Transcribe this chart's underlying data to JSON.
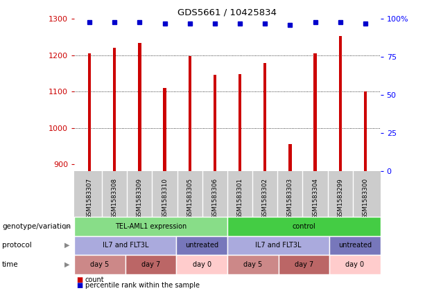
{
  "title": "GDS5661 / 10425834",
  "samples": [
    "GSM1583307",
    "GSM1583308",
    "GSM1583309",
    "GSM1583310",
    "GSM1583305",
    "GSM1583306",
    "GSM1583301",
    "GSM1583302",
    "GSM1583303",
    "GSM1583304",
    "GSM1583299",
    "GSM1583300"
  ],
  "counts": [
    1205,
    1220,
    1235,
    1110,
    1197,
    1147,
    1148,
    1178,
    955,
    1205,
    1253,
    1100
  ],
  "percentiles": [
    98,
    98,
    98,
    97,
    97,
    97,
    97,
    97,
    96,
    98,
    98,
    97
  ],
  "ylim_left": [
    880,
    1300
  ],
  "ylim_right": [
    0,
    100
  ],
  "yticks_left": [
    900,
    1000,
    1100,
    1200,
    1300
  ],
  "yticks_right": [
    0,
    25,
    50,
    75,
    100
  ],
  "ytick_labels_right": [
    "0",
    "25",
    "50",
    "75",
    "100%"
  ],
  "bar_color": "#cc0000",
  "dot_color": "#0000cc",
  "sample_bg_color": "#d0d0d0",
  "genotype_groups": [
    {
      "label": "TEL-AML1 expression",
      "start": 0,
      "end": 6,
      "color": "#88dd88"
    },
    {
      "label": "control",
      "start": 6,
      "end": 12,
      "color": "#44cc44"
    }
  ],
  "protocol_groups": [
    {
      "label": "IL7 and FLT3L",
      "start": 0,
      "end": 4,
      "color": "#aaaadd"
    },
    {
      "label": "untreated",
      "start": 4,
      "end": 6,
      "color": "#7777bb"
    },
    {
      "label": "IL7 and FLT3L",
      "start": 6,
      "end": 10,
      "color": "#aaaadd"
    },
    {
      "label": "untreated",
      "start": 10,
      "end": 12,
      "color": "#7777bb"
    }
  ],
  "time_groups": [
    {
      "label": "day 5",
      "start": 0,
      "end": 2,
      "color": "#cc8888"
    },
    {
      "label": "day 7",
      "start": 2,
      "end": 4,
      "color": "#bb6666"
    },
    {
      "label": "day 0",
      "start": 4,
      "end": 6,
      "color": "#ffcccc"
    },
    {
      "label": "day 5",
      "start": 6,
      "end": 8,
      "color": "#cc8888"
    },
    {
      "label": "day 7",
      "start": 8,
      "end": 10,
      "color": "#bb6666"
    },
    {
      "label": "day 0",
      "start": 10,
      "end": 12,
      "color": "#ffcccc"
    }
  ],
  "row_labels": [
    "genotype/variation",
    "protocol",
    "time"
  ],
  "legend_items": [
    {
      "label": "count",
      "color": "#cc0000"
    },
    {
      "label": "percentile rank within the sample",
      "color": "#0000cc"
    }
  ]
}
